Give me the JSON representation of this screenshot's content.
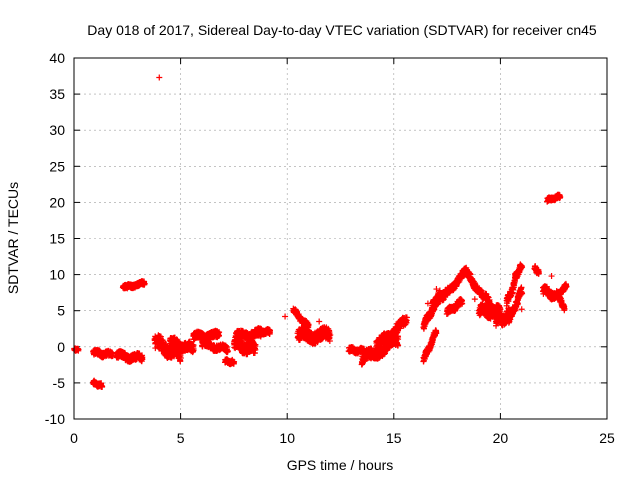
{
  "chart_data": {
    "type": "scatter",
    "title": "Day 018 of 2017, Sidereal Day-to-day VTEC variation (SDTVAR) for receiver cn45",
    "xlabel": "GPS time / hours",
    "ylabel": "SDTVAR / TECUs",
    "xlim": [
      0,
      25
    ],
    "ylim": [
      -10,
      40
    ],
    "xticks": [
      0,
      5,
      10,
      15,
      20,
      25
    ],
    "yticks": [
      -10,
      -5,
      0,
      5,
      10,
      15,
      20,
      25,
      30,
      35,
      40
    ],
    "grid": true,
    "marker": "+",
    "marker_color": "#ff0000",
    "series": [
      {
        "name": "SDTVAR",
        "segments": [
          {
            "from": [
              0.0,
              -0.4
            ],
            "to": [
              0.2,
              -0.4
            ],
            "spread": 0.3
          },
          {
            "from": [
              0.9,
              -5.0
            ],
            "to": [
              1.3,
              -5.4
            ],
            "spread": 0.5
          },
          {
            "from": [
              0.9,
              -0.8
            ],
            "to": [
              1.8,
              -1.1
            ],
            "spread": 0.7
          },
          {
            "from": [
              2.0,
              -1.2
            ],
            "to": [
              3.2,
              -1.6
            ],
            "spread": 0.9
          },
          {
            "from": [
              2.3,
              8.2
            ],
            "to": [
              3.3,
              8.8
            ],
            "spread": 0.5
          },
          {
            "from": [
              3.8,
              0.5
            ],
            "to": [
              5.0,
              -1.2
            ],
            "spread": 1.8
          },
          {
            "from": [
              4.5,
              0.6
            ],
            "to": [
              5.6,
              -0.3
            ],
            "spread": 1.2
          },
          {
            "from": [
              5.6,
              1.4
            ],
            "to": [
              6.8,
              1.6
            ],
            "spread": 0.9
          },
          {
            "from": [
              6.0,
              0.4
            ],
            "to": [
              7.2,
              -0.4
            ],
            "spread": 0.8
          },
          {
            "from": [
              7.1,
              -2.0
            ],
            "to": [
              7.5,
              -2.2
            ],
            "spread": 0.5
          },
          {
            "from": [
              7.5,
              0.4
            ],
            "to": [
              8.5,
              -0.4
            ],
            "spread": 1.6
          },
          {
            "from": [
              7.6,
              1.6
            ],
            "to": [
              8.8,
              1.8
            ],
            "spread": 0.9
          },
          {
            "from": [
              8.6,
              2.2
            ],
            "to": [
              9.2,
              2.0
            ],
            "spread": 0.6
          },
          {
            "from": [
              10.3,
              5.0
            ],
            "to": [
              11.0,
              2.8
            ],
            "spread": 0.6
          },
          {
            "from": [
              10.5,
              1.5
            ],
            "to": [
              12.0,
              1.6
            ],
            "spread": 1.6
          },
          {
            "from": [
              12.9,
              -0.4
            ],
            "to": [
              13.6,
              -0.6
            ],
            "spread": 0.6
          },
          {
            "from": [
              13.5,
              -1.8
            ],
            "to": [
              15.2,
              0.8
            ],
            "spread": 1.4
          },
          {
            "from": [
              14.2,
              0.2
            ],
            "to": [
              15.6,
              3.6
            ],
            "spread": 1.2
          },
          {
            "from": [
              16.4,
              -1.8
            ],
            "to": [
              17.0,
              2.2
            ],
            "spread": 0.7
          },
          {
            "from": [
              16.4,
              2.8
            ],
            "to": [
              17.2,
              7.5
            ],
            "spread": 0.9
          },
          {
            "from": [
              16.8,
              5.8
            ],
            "to": [
              17.3,
              7.0
            ],
            "spread": 0.7
          },
          {
            "from": [
              17.3,
              6.8
            ],
            "to": [
              18.4,
              10.5
            ],
            "spread": 0.9
          },
          {
            "from": [
              17.5,
              4.8
            ],
            "to": [
              18.2,
              6.2
            ],
            "spread": 0.8
          },
          {
            "from": [
              18.4,
              10.3
            ],
            "to": [
              19.2,
              6.8
            ],
            "spread": 0.8
          },
          {
            "from": [
              19.0,
              5.0
            ],
            "to": [
              20.0,
              4.8
            ],
            "spread": 1.4
          },
          {
            "from": [
              19.3,
              7.0
            ],
            "to": [
              19.9,
              4.0
            ],
            "spread": 0.8
          },
          {
            "from": [
              19.8,
              3.5
            ],
            "to": [
              20.5,
              4.5
            ],
            "spread": 1.4
          },
          {
            "from": [
              20.3,
              6.0
            ],
            "to": [
              20.8,
              10.0
            ],
            "spread": 0.9
          },
          {
            "from": [
              20.7,
              9.8
            ],
            "to": [
              21.0,
              11.2
            ],
            "spread": 0.6
          },
          {
            "from": [
              20.4,
              3.6
            ],
            "to": [
              21.0,
              7.8
            ],
            "spread": 0.9
          },
          {
            "from": [
              21.6,
              11.0
            ],
            "to": [
              21.8,
              10.2
            ],
            "spread": 0.5
          },
          {
            "from": [
              22.0,
              7.8
            ],
            "to": [
              22.8,
              6.8
            ],
            "spread": 1.0
          },
          {
            "from": [
              22.8,
              6.5
            ],
            "to": [
              23.0,
              5.2
            ],
            "spread": 0.6
          },
          {
            "from": [
              22.8,
              7.5
            ],
            "to": [
              23.1,
              8.5
            ],
            "spread": 0.5
          },
          {
            "from": [
              22.2,
              20.3
            ],
            "to": [
              22.8,
              20.8
            ],
            "spread": 0.5
          }
        ],
        "points": [
          [
            4.0,
            37.3
          ],
          [
            9.9,
            4.2
          ],
          [
            2.5,
            8.1
          ],
          [
            11.5,
            3.5
          ],
          [
            16.6,
            6.0
          ],
          [
            22.4,
            9.8
          ],
          [
            17.0,
            8.0
          ],
          [
            18.8,
            6.6
          ],
          [
            12.0,
            0.8
          ],
          [
            21.0,
            5.2
          ]
        ]
      }
    ]
  }
}
